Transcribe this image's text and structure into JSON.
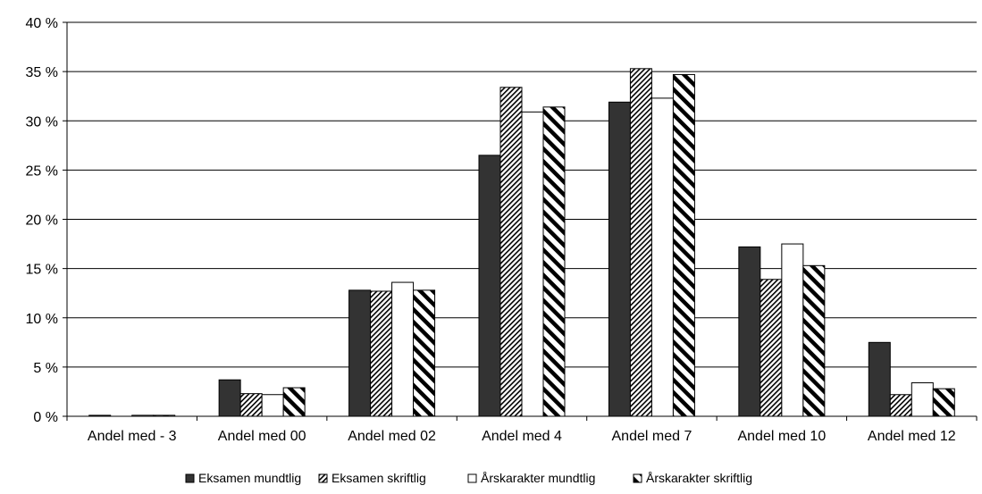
{
  "chart_data": {
    "type": "bar",
    "categories": [
      "Andel med - 3",
      "Andel med 00",
      "Andel med 02",
      "Andel med 4",
      "Andel med 7",
      "Andel med 10",
      "Andel med 12"
    ],
    "ylim": [
      0,
      40
    ],
    "yticks": [
      "0 %",
      "5 %",
      "10 %",
      "15 %",
      "20 %",
      "25 %",
      "30 %",
      "35 %",
      "40 %"
    ],
    "ytick_values": [
      0,
      5,
      10,
      15,
      20,
      25,
      30,
      35,
      40
    ],
    "grid": "horizontal",
    "legend_position": "bottom",
    "series": [
      {
        "name": "Eksamen mundtlig",
        "pattern": "solid-dark",
        "values": [
          0.1,
          3.7,
          12.8,
          26.5,
          31.9,
          17.2,
          7.5
        ]
      },
      {
        "name": "Eksamen skriftlig",
        "pattern": "thin-diagonal",
        "values": [
          0,
          2.3,
          12.7,
          33.4,
          35.3,
          13.9,
          2.2
        ]
      },
      {
        "name": "Årskarakter mundtlig",
        "pattern": "white",
        "values": [
          0.1,
          2.2,
          13.6,
          30.9,
          32.3,
          17.5,
          3.4
        ]
      },
      {
        "name": "Årskarakter skriftlig",
        "pattern": "thick-diagonal",
        "values": [
          0.1,
          2.9,
          12.8,
          31.4,
          34.7,
          15.3,
          2.8
        ]
      }
    ],
    "colors": {
      "dark": "#333333",
      "line": "#000000",
      "grid": "#000000",
      "background": "#ffffff"
    }
  }
}
